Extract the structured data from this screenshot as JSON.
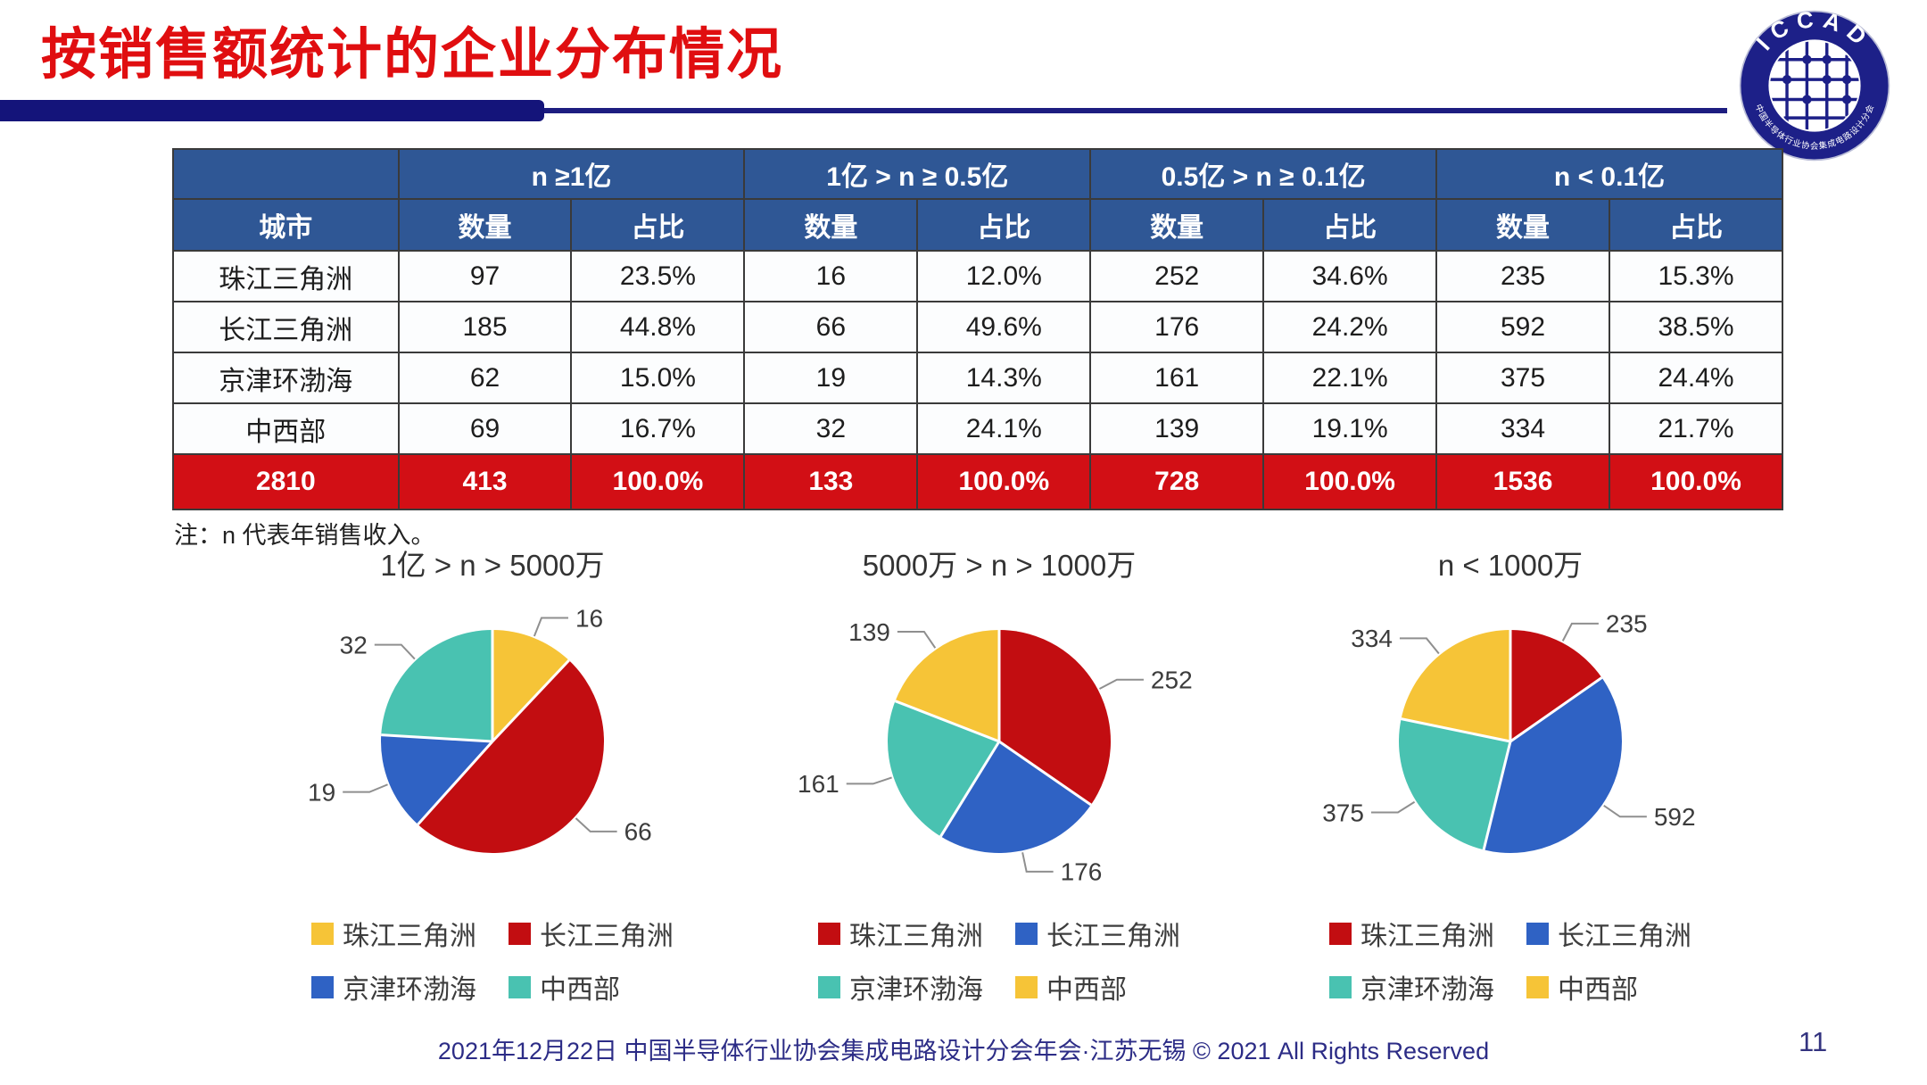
{
  "title": "按销售额统计的企业分布情况",
  "logo": {
    "acronym": "ICCAD",
    "ring_text": "中国半导体行业协会集成电路设计分会"
  },
  "table": {
    "city_header": "城市",
    "groups": [
      {
        "label": "n ≥1亿"
      },
      {
        "label": "1亿 > n ≥ 0.5亿"
      },
      {
        "label": "0.5亿 > n ≥ 0.1亿"
      },
      {
        "label": "n < 0.1亿"
      }
    ],
    "sub_headers": [
      "数量",
      "占比"
    ],
    "rows": [
      {
        "city": "珠江三角洲",
        "values": [
          "97",
          "23.5%",
          "16",
          "12.0%",
          "252",
          "34.6%",
          "235",
          "15.3%"
        ]
      },
      {
        "city": "长江三角洲",
        "values": [
          "185",
          "44.8%",
          "66",
          "49.6%",
          "176",
          "24.2%",
          "592",
          "38.5%"
        ]
      },
      {
        "city": "京津环渤海",
        "values": [
          "62",
          "15.0%",
          "19",
          "14.3%",
          "161",
          "22.1%",
          "375",
          "24.4%"
        ]
      },
      {
        "city": "中西部",
        "values": [
          "69",
          "16.7%",
          "32",
          "24.1%",
          "139",
          "19.1%",
          "334",
          "21.7%"
        ]
      }
    ],
    "total_row": {
      "city": "2810",
      "values": [
        "413",
        "100.0%",
        "133",
        "100.0%",
        "728",
        "100.0%",
        "1536",
        "100.0%"
      ]
    }
  },
  "note": "注：n 代表年销售收入。",
  "chart_data": [
    {
      "type": "pie",
      "title": "1亿 > n > 5000万",
      "labels": [
        "珠江三角洲",
        "长江三角洲",
        "京津环渤海",
        "中西部"
      ],
      "values": [
        16,
        66,
        19,
        32
      ],
      "colors": [
        "#F6C437",
        "#C20D11",
        "#2F62C4",
        "#49C2B1"
      ],
      "legend_position": "bottom"
    },
    {
      "type": "pie",
      "title": "5000万 > n > 1000万",
      "labels": [
        "珠江三角洲",
        "长江三角洲",
        "京津环渤海",
        "中西部"
      ],
      "values": [
        252,
        176,
        161,
        139
      ],
      "colors": [
        "#C20D11",
        "#2F62C4",
        "#49C2B1",
        "#F6C437"
      ],
      "legend_position": "bottom"
    },
    {
      "type": "pie",
      "title": "n < 1000万",
      "labels": [
        "珠江三角洲",
        "长江三角洲",
        "京津环渤海",
        "中西部"
      ],
      "values": [
        235,
        592,
        375,
        334
      ],
      "colors": [
        "#C20D11",
        "#2F62C4",
        "#49C2B1",
        "#F6C437"
      ],
      "legend_position": "bottom"
    }
  ],
  "footer": {
    "text": "2021年12月22日 中国半导体行业协会集成电路设计分会年会·江苏无锡 © 2021 All Rights Reserved",
    "page": "11"
  },
  "colors": {
    "title_red": "#E00E10",
    "header_blue": "#2F5795",
    "total_row_red": "#D20F15",
    "bar_navy": "#14147A",
    "footer_navy": "#2C2C86",
    "pie_yellow": "#F6C437",
    "pie_red": "#C20D11",
    "pie_blue": "#2F62C4",
    "pie_teal": "#49C2B1",
    "label_gray": "#3d3d3d"
  }
}
